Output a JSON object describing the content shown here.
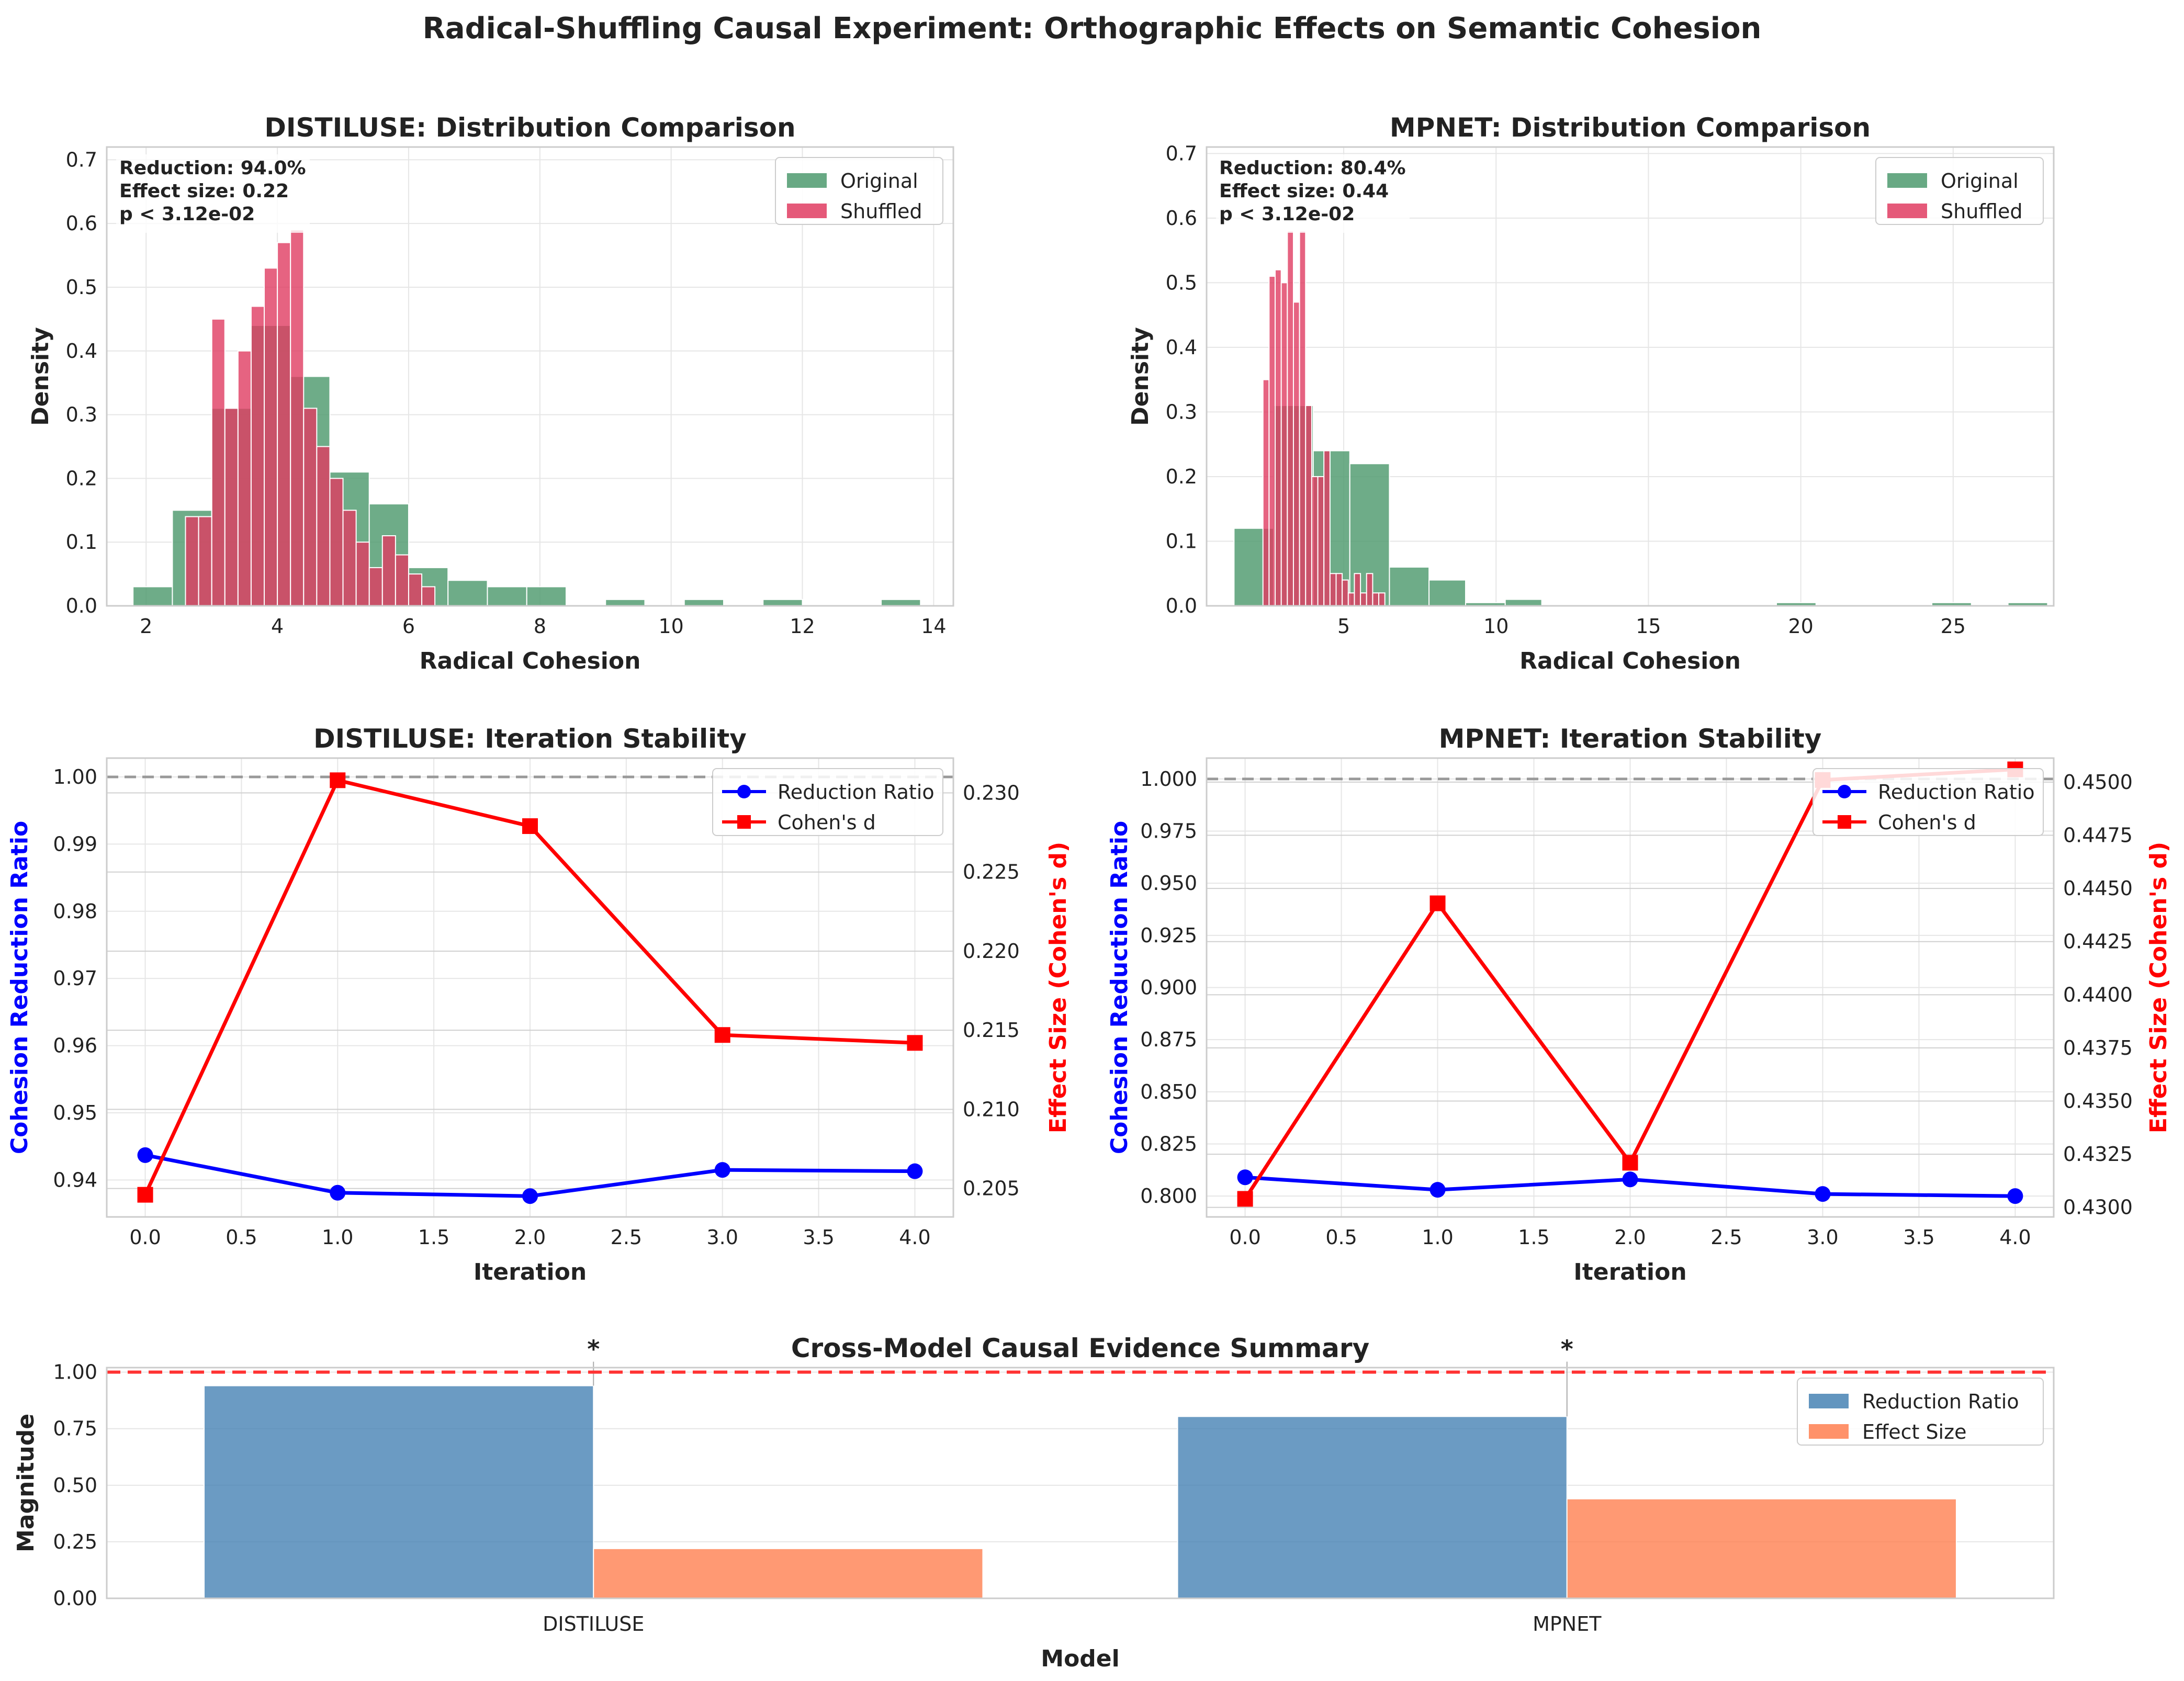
{
  "title": "Radical-Shuffling Causal Experiment: Orthographic Effects on Semantic Cohesion",
  "colors": {
    "original": "#4e9a6e",
    "shuffled": "#e03c62",
    "reduction_line": "#0000ff",
    "cohens_line": "#ff0000",
    "reduction_bar": "#4682b4",
    "effect_bar": "#ff7f50",
    "threshold": "#ff3333",
    "grid": "#e6e6e6",
    "spine": "#cccccc"
  },
  "chart_data": [
    {
      "id": "distiluse_hist",
      "type": "histogram",
      "title": "DISTILUSE: Distribution Comparison",
      "xlabel": "Radical Cohesion",
      "ylabel": "Density",
      "xlim": [
        1.4,
        14.3
      ],
      "ylim": [
        0,
        0.72
      ],
      "xticks": [
        2,
        4,
        6,
        8,
        10,
        12,
        14
      ],
      "yticks": [
        0.0,
        0.1,
        0.2,
        0.3,
        0.4,
        0.5,
        0.6,
        0.7
      ],
      "legend_position": "top-right",
      "grid": true,
      "annotation": [
        "Reduction: 94.0%",
        "Effect size: 0.22",
        "p < 3.12e-02"
      ],
      "series": [
        {
          "name": "Original",
          "bins": [
            [
              1.8,
              2.4,
              0.03
            ],
            [
              2.4,
              3.0,
              0.15
            ],
            [
              3.0,
              3.6,
              0.31
            ],
            [
              3.6,
              4.2,
              0.44
            ],
            [
              4.2,
              4.8,
              0.36
            ],
            [
              4.8,
              5.4,
              0.21
            ],
            [
              5.4,
              6.0,
              0.16
            ],
            [
              6.0,
              6.6,
              0.06
            ],
            [
              6.6,
              7.2,
              0.04
            ],
            [
              7.2,
              7.8,
              0.03
            ],
            [
              7.8,
              8.4,
              0.03
            ],
            [
              9.0,
              9.6,
              0.01
            ],
            [
              10.2,
              10.8,
              0.01
            ],
            [
              11.4,
              12.0,
              0.01
            ],
            [
              13.2,
              13.8,
              0.01
            ]
          ]
        },
        {
          "name": "Shuffled",
          "bins": [
            [
              2.6,
              2.8,
              0.14
            ],
            [
              2.8,
              3.0,
              0.14
            ],
            [
              3.0,
              3.2,
              0.45
            ],
            [
              3.2,
              3.4,
              0.31
            ],
            [
              3.4,
              3.6,
              0.4
            ],
            [
              3.6,
              3.8,
              0.47
            ],
            [
              3.8,
              4.0,
              0.53
            ],
            [
              4.0,
              4.2,
              0.57
            ],
            [
              4.2,
              4.4,
              0.59
            ],
            [
              4.4,
              4.6,
              0.31
            ],
            [
              4.6,
              4.8,
              0.25
            ],
            [
              4.8,
              5.0,
              0.2
            ],
            [
              5.0,
              5.2,
              0.15
            ],
            [
              5.2,
              5.4,
              0.1
            ],
            [
              5.4,
              5.6,
              0.06
            ],
            [
              5.6,
              5.8,
              0.11
            ],
            [
              5.8,
              6.0,
              0.08
            ],
            [
              6.0,
              6.2,
              0.05
            ],
            [
              6.2,
              6.4,
              0.03
            ]
          ]
        }
      ]
    },
    {
      "id": "mpnet_hist",
      "type": "histogram",
      "title": "MPNET: Distribution Comparison",
      "xlabel": "Radical Cohesion",
      "ylabel": "Density",
      "xlim": [
        0.5,
        28.3
      ],
      "ylim": [
        0,
        0.71
      ],
      "xticks": [
        5,
        10,
        15,
        20,
        25
      ],
      "yticks": [
        0.0,
        0.1,
        0.2,
        0.3,
        0.4,
        0.5,
        0.6,
        0.7
      ],
      "legend_position": "top-right",
      "grid": true,
      "annotation": [
        "Reduction: 80.4%",
        "Effect size: 0.44",
        "p < 3.12e-02"
      ],
      "series": [
        {
          "name": "Original",
          "bins": [
            [
              1.4,
              2.7,
              0.12
            ],
            [
              2.7,
              4.0,
              0.31
            ],
            [
              4.0,
              5.2,
              0.24
            ],
            [
              5.2,
              6.5,
              0.22
            ],
            [
              6.5,
              7.8,
              0.06
            ],
            [
              7.8,
              9.0,
              0.04
            ],
            [
              9.0,
              10.3,
              0.005
            ],
            [
              10.3,
              11.5,
              0.01
            ],
            [
              19.2,
              20.5,
              0.005
            ],
            [
              24.3,
              25.6,
              0.005
            ],
            [
              26.8,
              28.1,
              0.005
            ]
          ]
        },
        {
          "name": "Shuffled",
          "bins": [
            [
              2.35,
              2.55,
              0.35
            ],
            [
              2.55,
              2.75,
              0.51
            ],
            [
              2.75,
              2.95,
              0.52
            ],
            [
              2.95,
              3.15,
              0.5
            ],
            [
              3.15,
              3.35,
              0.58
            ],
            [
              3.35,
              3.55,
              0.47
            ],
            [
              3.55,
              3.75,
              0.58
            ],
            [
              3.75,
              3.95,
              0.31
            ],
            [
              3.95,
              4.15,
              0.2
            ],
            [
              4.15,
              4.35,
              0.2
            ],
            [
              4.35,
              4.55,
              0.24
            ],
            [
              4.55,
              4.75,
              0.05
            ],
            [
              4.75,
              4.95,
              0.05
            ],
            [
              4.95,
              5.15,
              0.04
            ],
            [
              5.15,
              5.35,
              0.02
            ],
            [
              5.35,
              5.55,
              0.05
            ],
            [
              5.55,
              5.75,
              0.02
            ],
            [
              5.75,
              5.95,
              0.05
            ],
            [
              5.95,
              6.15,
              0.02
            ],
            [
              6.15,
              6.35,
              0.02
            ]
          ]
        }
      ]
    },
    {
      "id": "distiluse_stability",
      "type": "line",
      "title": "DISTILUSE: Iteration Stability",
      "xlabel": "Iteration",
      "ylabel": "Cohesion Reduction Ratio",
      "ylabel_right": "Effect Size (Cohen's d)",
      "xlim": [
        -0.2,
        4.2
      ],
      "ylim": [
        0.9345,
        1.0028
      ],
      "ylim_right": [
        0.2032,
        0.2322
      ],
      "xticks": [
        0.0,
        0.5,
        1.0,
        1.5,
        2.0,
        2.5,
        3.0,
        3.5,
        4.0
      ],
      "yticks": [
        0.94,
        0.95,
        0.96,
        0.97,
        0.98,
        0.99,
        1.0
      ],
      "yticks_right": [
        0.205,
        0.21,
        0.215,
        0.22,
        0.225,
        0.23
      ],
      "reference_line": 1.0,
      "legend_position": "top-right",
      "grid": true,
      "x": [
        0,
        1,
        2,
        3,
        4
      ],
      "series": [
        {
          "name": "Reduction Ratio",
          "axis": "left",
          "marker": "circle",
          "values": [
            0.9437,
            0.9381,
            0.9376,
            0.9415,
            0.9413
          ]
        },
        {
          "name": "Cohen's d",
          "axis": "right",
          "marker": "square",
          "values": [
            0.2046,
            0.2308,
            0.2279,
            0.2147,
            0.2142
          ]
        }
      ]
    },
    {
      "id": "mpnet_stability",
      "type": "line",
      "title": "MPNET: Iteration Stability",
      "xlabel": "Iteration",
      "ylabel": "Cohesion Reduction Ratio",
      "ylabel_right": "Effect Size (Cohen's d)",
      "xlim": [
        -0.2,
        4.2
      ],
      "ylim": [
        0.79,
        1.01
      ],
      "ylim_right": [
        0.42955,
        0.45113
      ],
      "xticks": [
        0.0,
        0.5,
        1.0,
        1.5,
        2.0,
        2.5,
        3.0,
        3.5,
        4.0
      ],
      "yticks": [
        0.8,
        0.825,
        0.85,
        0.875,
        0.9,
        0.925,
        0.95,
        0.975,
        1.0
      ],
      "ytick_labels": [
        "0.800",
        "0.825",
        "0.850",
        "0.875",
        "0.900",
        "0.925",
        "0.950",
        "0.975",
        "1.000"
      ],
      "yticks_right": [
        0.43,
        0.4325,
        0.435,
        0.4375,
        0.44,
        0.4425,
        0.445,
        0.4475,
        0.45
      ],
      "ytick_labels_right": [
        "0.4300",
        "0.4325",
        "0.4350",
        "0.4375",
        "0.4400",
        "0.4425",
        "0.4450",
        "0.4475",
        "0.4500"
      ],
      "reference_line": 1.0,
      "legend_position": "top-right",
      "grid": true,
      "x": [
        0,
        1,
        2,
        3,
        4
      ],
      "series": [
        {
          "name": "Reduction Ratio",
          "axis": "left",
          "marker": "circle",
          "values": [
            0.809,
            0.803,
            0.808,
            0.801,
            0.8
          ]
        },
        {
          "name": "Cohen's d",
          "axis": "right",
          "marker": "square",
          "values": [
            0.4304,
            0.4443,
            0.4321,
            0.4501,
            0.4506
          ]
        }
      ]
    },
    {
      "id": "cross_model_summary",
      "type": "bar",
      "title": "Cross-Model Causal Evidence Summary",
      "xlabel": "Model",
      "ylabel": "Magnitude",
      "categories": [
        "DISTILUSE",
        "MPNET"
      ],
      "ylim": [
        0,
        1.02
      ],
      "yticks": [
        0.0,
        0.25,
        0.5,
        0.75,
        1.0
      ],
      "ytick_labels": [
        "0.00",
        "0.25",
        "0.50",
        "0.75",
        "1.00"
      ],
      "reference_line": 1.0,
      "significance_markers": [
        "*",
        "*"
      ],
      "legend_position": "top-right",
      "grid": true,
      "series": [
        {
          "name": "Reduction Ratio",
          "values": [
            0.94,
            0.804
          ]
        },
        {
          "name": "Effect Size",
          "values": [
            0.22,
            0.44
          ]
        }
      ]
    }
  ]
}
